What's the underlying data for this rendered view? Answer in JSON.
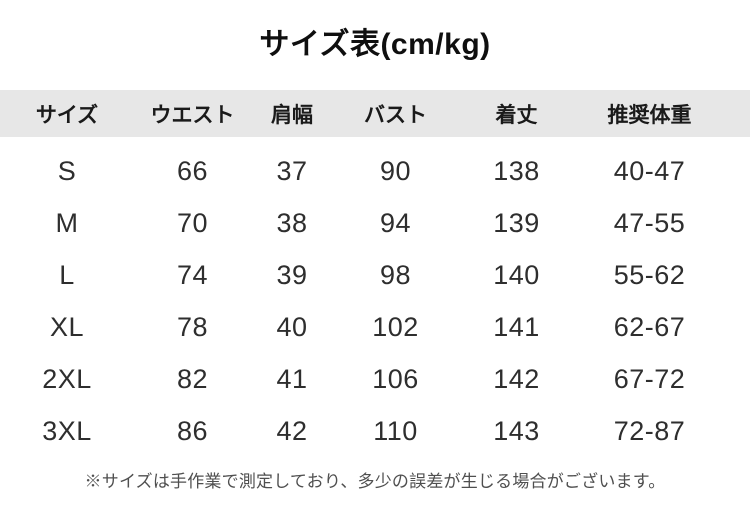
{
  "chart_data": {
    "type": "table",
    "title": "サイズ表(cm/kg)",
    "columns": [
      "サイズ",
      "ウエスト",
      "肩幅",
      "バスト",
      "着丈",
      "推奨体重"
    ],
    "rows": [
      [
        "S",
        "66",
        "37",
        "90",
        "138",
        "40-47"
      ],
      [
        "M",
        "70",
        "38",
        "94",
        "139",
        "47-55"
      ],
      [
        "L",
        "74",
        "39",
        "98",
        "140",
        "55-62"
      ],
      [
        "XL",
        "78",
        "40",
        "102",
        "141",
        "62-67"
      ],
      [
        "2XL",
        "82",
        "41",
        "106",
        "142",
        "67-72"
      ],
      [
        "3XL",
        "86",
        "42",
        "110",
        "143",
        "72-87"
      ]
    ],
    "footnote": "※サイズは手作業で測定しており、多少の誤差が生じる場合がございます。",
    "layout": {
      "legend": "none",
      "grid": "off",
      "header_row_shaded": true,
      "units": "cm/kg"
    }
  },
  "colors": {
    "background": "#ffffff",
    "header_bg": "#e7e7e7",
    "title_text": "#0f0f0f",
    "header_text": "#1a1a1a",
    "cell_text": "#2e2e2e",
    "note_text": "#4f4f4f"
  }
}
